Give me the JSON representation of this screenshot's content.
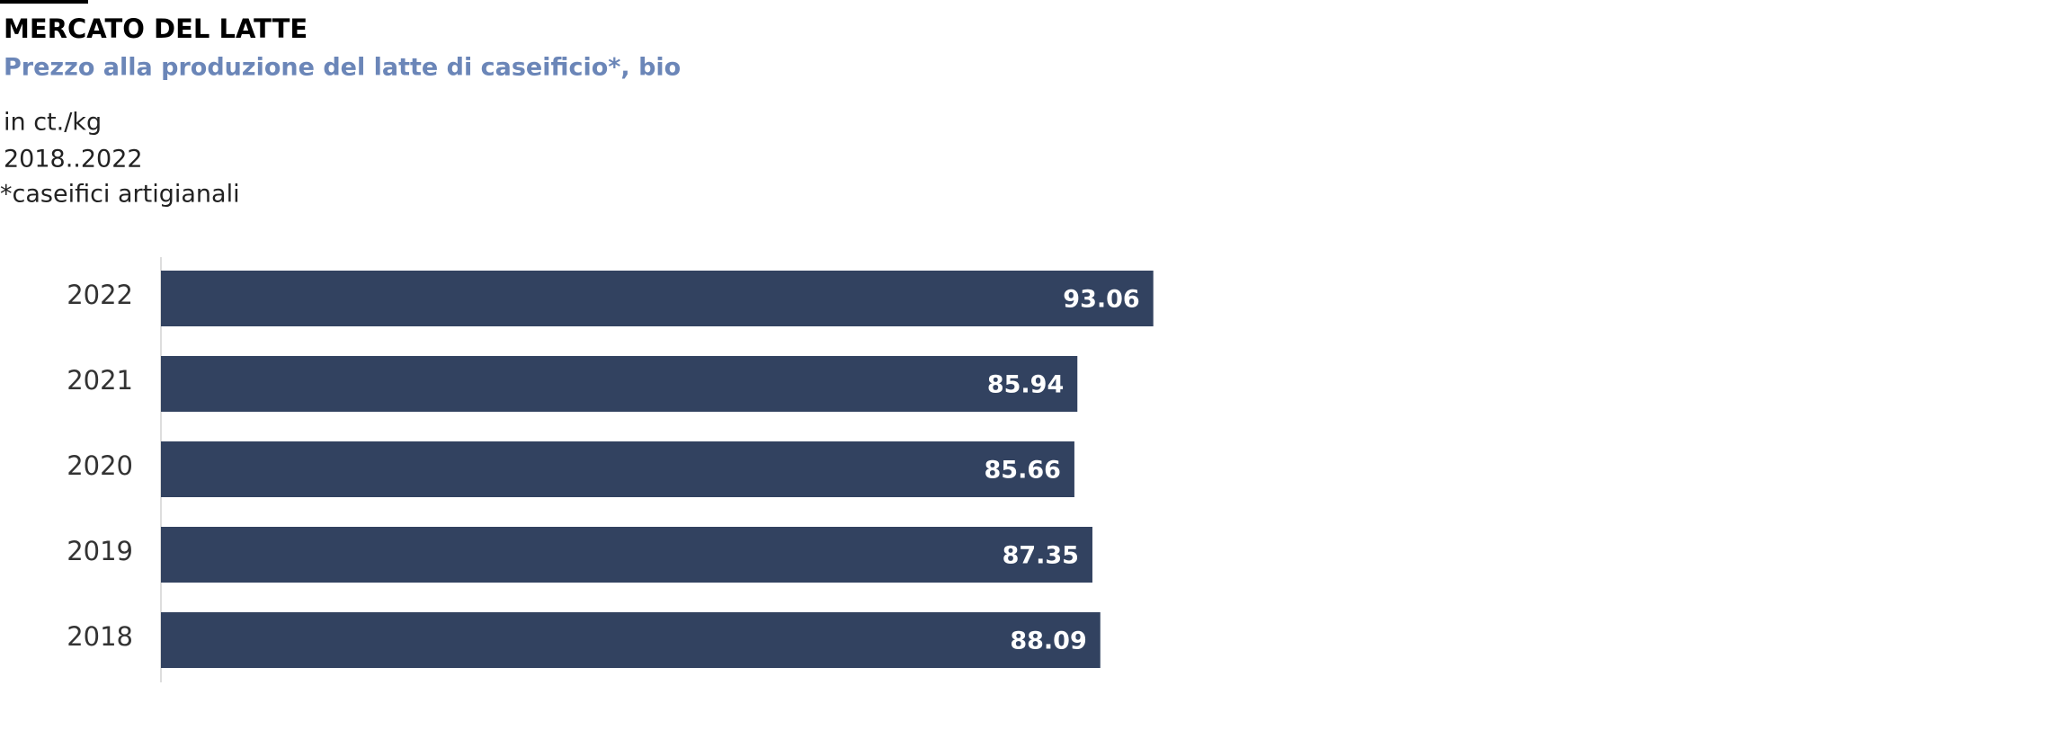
{
  "chart_data": {
    "type": "bar",
    "orientation": "horizontal",
    "title": "MERCATO DEL LATTE",
    "subtitle": "Prezzo alla produzione del latte di caseificio*, bio",
    "notes": [
      "in ct./kg",
      "2018..2022",
      "*caseifici artigianali"
    ],
    "categories": [
      "2022",
      "2021",
      "2020",
      "2019",
      "2018"
    ],
    "values": [
      93.06,
      85.94,
      85.66,
      87.35,
      88.09
    ],
    "color": "#324260"
  }
}
